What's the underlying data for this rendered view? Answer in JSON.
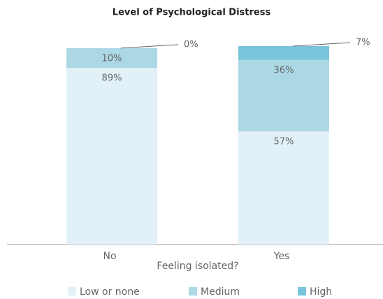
{
  "chart_data": {
    "type": "stacked_bar",
    "title": "Level of Psychological Distress",
    "x_label": "Feeling isolated?",
    "categories": [
      "No",
      "Yes"
    ],
    "series": [
      {
        "name": "Low or none",
        "color": "#e1f1f7",
        "values": [
          89,
          57
        ],
        "value_labels": [
          "89%",
          "57%"
        ]
      },
      {
        "name": "Medium",
        "color": "#acd8e6",
        "values": [
          10,
          36
        ],
        "value_labels": [
          "10%",
          "36%"
        ]
      },
      {
        "name": "High",
        "color": "#78c5db",
        "values": [
          0,
          7
        ],
        "value_labels": [
          "0%",
          "7%"
        ]
      }
    ],
    "ylim": [
      0,
      100
    ]
  }
}
